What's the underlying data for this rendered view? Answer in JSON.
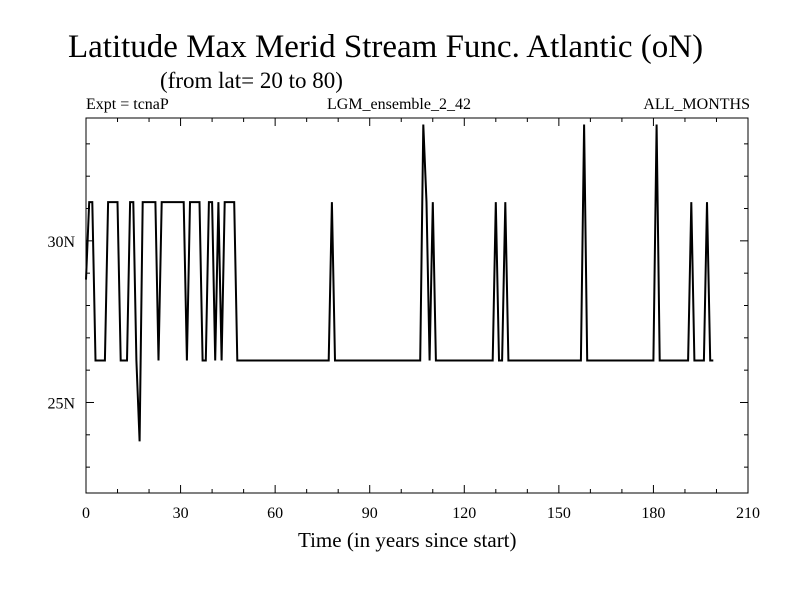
{
  "chart_data": {
    "type": "line",
    "title": "Latitude Max Merid Stream Func. Atlantic (oN)",
    "subtitle": "(from lat= 20 to 80)",
    "header": {
      "left": "Expt = tcnaP",
      "center": "LGM_ensemble_2_42",
      "right": "ALL_MONTHS"
    },
    "xlabel": "Time (in years since start)",
    "ylabel": "",
    "xlim": [
      0,
      210
    ],
    "ylim": [
      22.2,
      33.8
    ],
    "xticks": [
      0,
      30,
      60,
      90,
      120,
      150,
      180,
      210
    ],
    "xtick_labels": [
      "0",
      "30",
      "60",
      "90",
      "120",
      "150",
      "180",
      "210"
    ],
    "yticks": [
      25,
      30
    ],
    "ytick_labels": [
      "25N",
      "30N"
    ],
    "grid": false,
    "series": [
      {
        "color": "#000000",
        "x": [
          0,
          1,
          2,
          3,
          4,
          5,
          6,
          7,
          8,
          9,
          10,
          11,
          12,
          13,
          14,
          15,
          16,
          17,
          18,
          19,
          20,
          21,
          22,
          23,
          24,
          25,
          26,
          27,
          28,
          29,
          30,
          31,
          32,
          33,
          34,
          35,
          36,
          37,
          38,
          39,
          40,
          41,
          42,
          43,
          44,
          45,
          46,
          47,
          48,
          49,
          77,
          78,
          79,
          80,
          106,
          107,
          108,
          109,
          110,
          111,
          129,
          130,
          131,
          132,
          133,
          134,
          157,
          158,
          159,
          180,
          181,
          182,
          191,
          192,
          193,
          196,
          197,
          198,
          199
        ],
        "y": [
          28.8,
          31.2,
          31.2,
          26.3,
          26.3,
          26.3,
          26.3,
          31.2,
          31.2,
          31.2,
          31.2,
          26.3,
          26.3,
          26.3,
          31.2,
          31.2,
          26.3,
          23.8,
          31.2,
          31.2,
          31.2,
          31.2,
          31.2,
          26.3,
          31.2,
          31.2,
          31.2,
          31.2,
          31.2,
          31.2,
          31.2,
          31.2,
          26.3,
          31.2,
          31.2,
          31.2,
          31.2,
          26.3,
          26.3,
          31.2,
          31.2,
          26.3,
          31.2,
          26.3,
          31.2,
          31.2,
          31.2,
          31.2,
          26.3,
          26.3,
          26.3,
          31.2,
          26.3,
          26.3,
          26.3,
          33.6,
          31.2,
          26.3,
          31.2,
          26.3,
          26.3,
          31.2,
          26.3,
          26.3,
          31.2,
          26.3,
          26.3,
          33.6,
          26.3,
          26.3,
          33.6,
          26.3,
          26.3,
          31.2,
          26.3,
          26.3,
          31.2,
          26.3,
          26.3
        ]
      }
    ]
  }
}
